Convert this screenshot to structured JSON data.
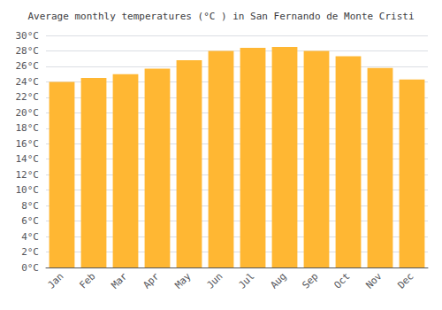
{
  "chart_data": {
    "type": "bar",
    "title": "Average monthly temperatures (°C ) in San Fernando de Monte Cristi",
    "categories": [
      "Jan",
      "Feb",
      "Mar",
      "Apr",
      "May",
      "Jun",
      "Jul",
      "Aug",
      "Sep",
      "Oct",
      "Nov",
      "Dec"
    ],
    "values": [
      24.0,
      24.5,
      25.0,
      25.7,
      26.8,
      28.0,
      28.4,
      28.5,
      28.0,
      27.3,
      25.8,
      24.3
    ],
    "color": "#FFB733",
    "ylim": [
      0,
      30
    ],
    "yticks": [
      {
        "value": 0,
        "label": "0°C"
      },
      {
        "value": 2,
        "label": "2°C"
      },
      {
        "value": 4,
        "label": "4°C"
      },
      {
        "value": 6,
        "label": "6°C"
      },
      {
        "value": 8,
        "label": "8°C"
      },
      {
        "value": 10,
        "label": "10°C"
      },
      {
        "value": 12,
        "label": "12°C"
      },
      {
        "value": 14,
        "label": "14°C"
      },
      {
        "value": 16,
        "label": "16°C"
      },
      {
        "value": 18,
        "label": "18°C"
      },
      {
        "value": 20,
        "label": "20°C"
      },
      {
        "value": 22,
        "label": "22°C"
      },
      {
        "value": 24,
        "label": "24°C"
      },
      {
        "value": 26,
        "label": "26°C"
      },
      {
        "value": 28,
        "label": "28°C"
      },
      {
        "value": 30,
        "label": "30°C"
      }
    ],
    "grid": true
  }
}
